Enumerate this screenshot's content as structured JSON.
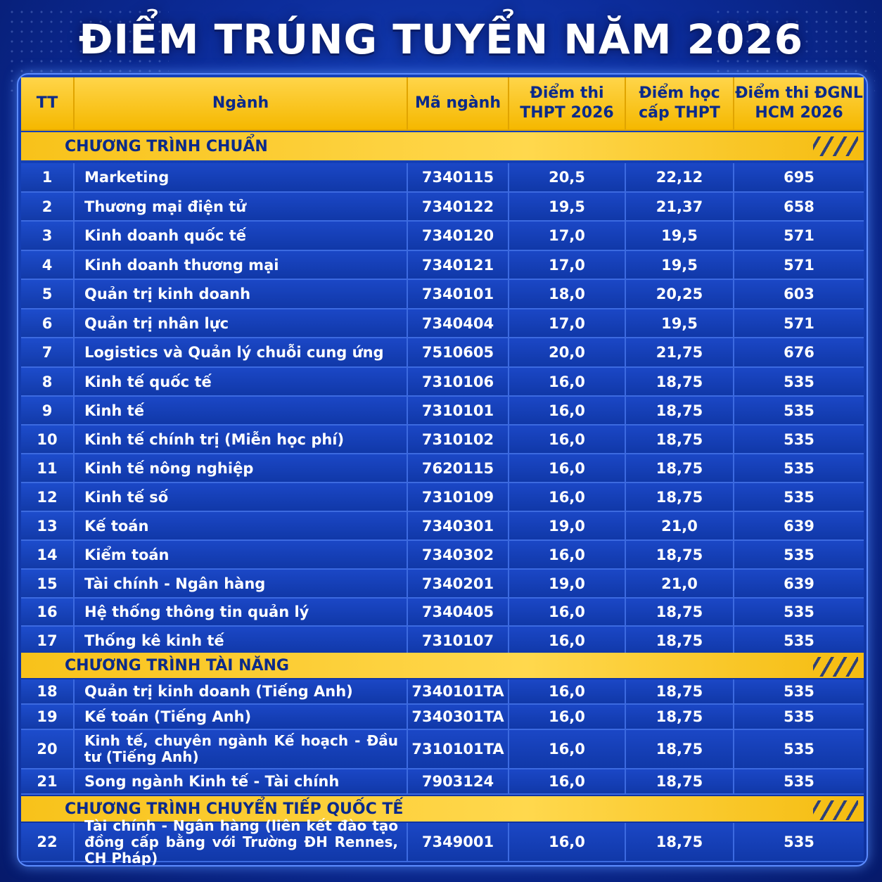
{
  "title": "ĐIỂM TRÚNG TUYỂN NĂM 2026",
  "headers": {
    "tt": "TT",
    "nganh": "Ngành",
    "ma": "Mã ngành",
    "thpt_1": "Điểm thi",
    "thpt_2": "THPT 2026",
    "hocba_1": "Điểm học",
    "hocba_2": "cấp THPT",
    "dgnl_1": "Điểm thi ĐGNL",
    "dgnl_2": "HCM 2026"
  },
  "sections": [
    {
      "title": "CHƯƠNG TRÌNH CHUẨN",
      "rows": [
        {
          "tt": "1",
          "nganh": "Marketing",
          "ma": "7340115",
          "thpt": "20,5",
          "hocba": "22,12",
          "dgnl": "695"
        },
        {
          "tt": "2",
          "nganh": "Thương mại điện tử",
          "ma": "7340122",
          "thpt": "19,5",
          "hocba": "21,37",
          "dgnl": "658"
        },
        {
          "tt": "3",
          "nganh": "Kinh doanh quốc tế",
          "ma": "7340120",
          "thpt": "17,0",
          "hocba": "19,5",
          "dgnl": "571"
        },
        {
          "tt": "4",
          "nganh": "Kinh doanh thương mại",
          "ma": "7340121",
          "thpt": "17,0",
          "hocba": "19,5",
          "dgnl": "571"
        },
        {
          "tt": "5",
          "nganh": "Quản trị kinh doanh",
          "ma": "7340101",
          "thpt": "18,0",
          "hocba": "20,25",
          "dgnl": "603"
        },
        {
          "tt": "6",
          "nganh": "Quản trị nhân lực",
          "ma": "7340404",
          "thpt": "17,0",
          "hocba": "19,5",
          "dgnl": "571"
        },
        {
          "tt": "7",
          "nganh": "Logistics và Quản lý chuỗi cung ứng",
          "ma": "7510605",
          "thpt": "20,0",
          "hocba": "21,75",
          "dgnl": "676"
        },
        {
          "tt": "8",
          "nganh": "Kinh tế quốc tế",
          "ma": "7310106",
          "thpt": "16,0",
          "hocba": "18,75",
          "dgnl": "535"
        },
        {
          "tt": "9",
          "nganh": "Kinh tế",
          "ma": "7310101",
          "thpt": "16,0",
          "hocba": "18,75",
          "dgnl": "535"
        },
        {
          "tt": "10",
          "nganh": "Kinh tế chính trị (Miễn học phí)",
          "ma": "7310102",
          "thpt": "16,0",
          "hocba": "18,75",
          "dgnl": "535"
        },
        {
          "tt": "11",
          "nganh": "Kinh tế nông nghiệp",
          "ma": "7620115",
          "thpt": "16,0",
          "hocba": "18,75",
          "dgnl": "535"
        },
        {
          "tt": "12",
          "nganh": "Kinh tế số",
          "ma": "7310109",
          "thpt": "16,0",
          "hocba": "18,75",
          "dgnl": "535"
        },
        {
          "tt": "13",
          "nganh": "Kế toán",
          "ma": "7340301",
          "thpt": "19,0",
          "hocba": "21,0",
          "dgnl": "639"
        },
        {
          "tt": "14",
          "nganh": "Kiểm toán",
          "ma": "7340302",
          "thpt": "16,0",
          "hocba": "18,75",
          "dgnl": "535"
        },
        {
          "tt": "15",
          "nganh": "Tài chính - Ngân hàng",
          "ma": "7340201",
          "thpt": "19,0",
          "hocba": "21,0",
          "dgnl": "639"
        },
        {
          "tt": "16",
          "nganh": "Hệ thống thông tin quản lý",
          "ma": "7340405",
          "thpt": "16,0",
          "hocba": "18,75",
          "dgnl": "535"
        },
        {
          "tt": "17",
          "nganh": "Thống kê kinh tế",
          "ma": "7310107",
          "thpt": "16,0",
          "hocba": "18,75",
          "dgnl": "535"
        }
      ]
    },
    {
      "title": "CHƯƠNG TRÌNH TÀI NĂNG",
      "rows": [
        {
          "tt": "18",
          "nganh": "Quản trị kinh doanh (Tiếng Anh)",
          "ma": "7340101TA",
          "thpt": "16,0",
          "hocba": "18,75",
          "dgnl": "535"
        },
        {
          "tt": "19",
          "nganh": "Kế toán (Tiếng Anh)",
          "ma": "7340301TA",
          "thpt": "16,0",
          "hocba": "18,75",
          "dgnl": "535"
        },
        {
          "tt": "20",
          "nganh": "Kinh tế, chuyên ngành Kế hoạch - Đầu tư (Tiếng Anh)",
          "ma": "7310101TA",
          "thpt": "16,0",
          "hocba": "18,75",
          "dgnl": "535"
        },
        {
          "tt": "21",
          "nganh": "Song ngành Kinh tế - Tài chính",
          "ma": "7903124",
          "thpt": "16,0",
          "hocba": "18,75",
          "dgnl": "535"
        }
      ]
    },
    {
      "title": "CHƯƠNG TRÌNH CHUYỂN TIẾP QUỐC TẾ",
      "rows": [
        {
          "tt": "22",
          "nganh": "Tài chính - Ngân hàng (liên kết đào tạo đồng cấp bằng với Trường ĐH Rennes, CH Pháp)",
          "ma": "7349001",
          "thpt": "16,0",
          "hocba": "18,75",
          "dgnl": "535"
        }
      ]
    }
  ]
}
